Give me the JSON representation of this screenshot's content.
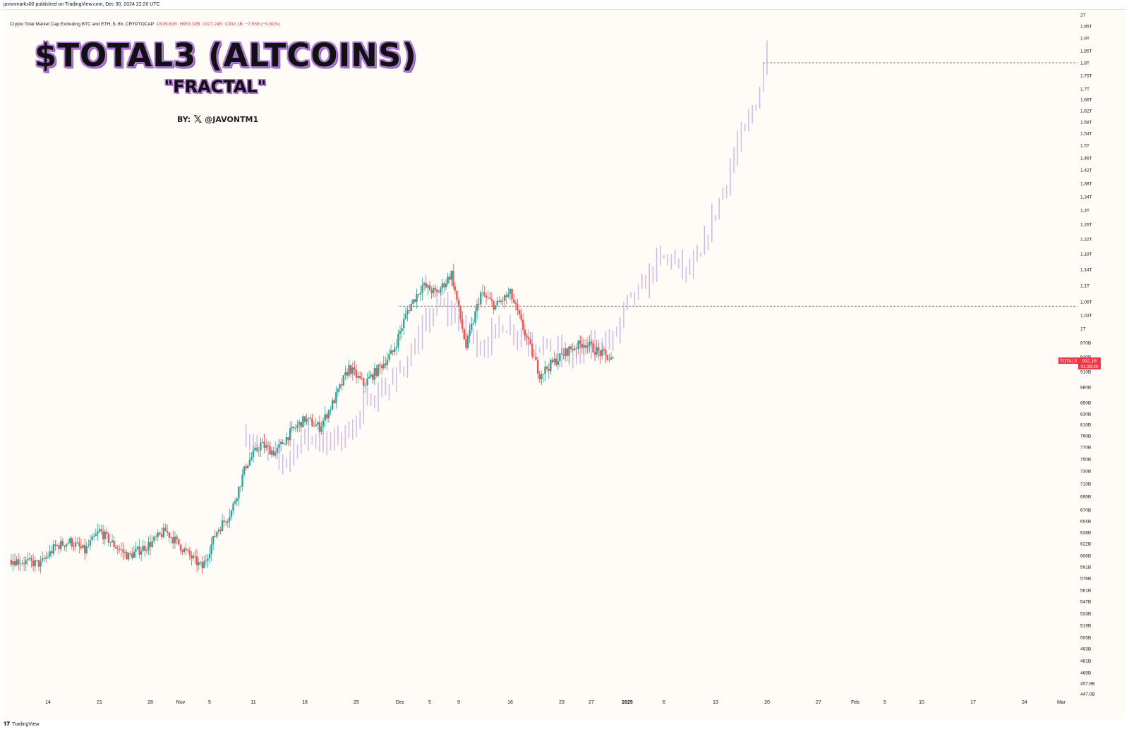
{
  "header": {
    "publisher": "javonmarks00 published on TradingView.com, Dec 30, 2024 22:20 UTC"
  },
  "legend": {
    "symbol_desc": "Crypto Total Market Cap Excluding BTC and ETH, $, 6h, CRYPTOCAP",
    "open": "O939.61B",
    "high": "H953.32B",
    "low": "L927.24B",
    "close": "C932.1B",
    "change": "−7.65B (−0.81%)"
  },
  "overlay": {
    "title": "$TOTAL3 (ALTCOINS)",
    "subtitle": "\"FRACTAL\"",
    "by_label": "BY:",
    "x_icon": "x-logo-icon",
    "handle": "@JAVONTM1"
  },
  "footer": {
    "brand": "TradingView",
    "logo_icon": "tradingview-logo-icon"
  },
  "price_tag": {
    "symbol": "TOTAL3",
    "value": "932.1B",
    "countdown": "01:39:28",
    "color": "#f23645"
  },
  "colors": {
    "up": "#26a69a",
    "down": "#ef5350",
    "fractal": "#cdb6e6",
    "background": "#fffcf7",
    "title_outline": "#b07ad6"
  },
  "chart_data": {
    "type": "candlestick",
    "scale": "log",
    "y_ticks": [
      "2T",
      "1.95T",
      "1.9T",
      "1.85T",
      "1.8T",
      "1.75T",
      "1.7T",
      "1.66T",
      "1.62T",
      "1.58T",
      "1.54T",
      "1.5T",
      "1.46T",
      "1.42T",
      "1.38T",
      "1.34T",
      "1.3T",
      "1.26T",
      "1.22T",
      "1.18T",
      "1.14T",
      "1.1T",
      "1.06T",
      "1.03T",
      "1T",
      "970B",
      "940B",
      "910B",
      "880B",
      "850B",
      "830B",
      "810B",
      "790B",
      "770B",
      "750B",
      "730B",
      "710B",
      "690B",
      "670B",
      "654B",
      "638B",
      "622B",
      "606B",
      "591B",
      "576B",
      "561B",
      "547B",
      "533B",
      "519B",
      "505B",
      "493B",
      "481B",
      "469B",
      "457.8B",
      "447.0B"
    ],
    "x_ticks": [
      "14",
      "21",
      "28",
      "Nov",
      "5",
      "11",
      "18",
      "25",
      "Dec",
      "5",
      "9",
      "16",
      "23",
      "27",
      "2025",
      "6",
      "13",
      "20",
      "27",
      "Feb",
      "5",
      "10",
      "17",
      "24",
      "Mar"
    ],
    "hlines": [
      1050000000000.0,
      1800000000000.0
    ],
    "series": [
      {
        "name": "TOTAL3",
        "kind": "actual_6h_candles",
        "anchors": [
          [
            "2024-10-09",
            600000000000.0
          ],
          [
            "2024-10-13",
            595000000000.0
          ],
          [
            "2024-10-15",
            618000000000.0
          ],
          [
            "2024-10-17",
            625000000000.0
          ],
          [
            "2024-10-19",
            612000000000.0
          ],
          [
            "2024-10-21",
            640000000000.0
          ],
          [
            "2024-10-23",
            620000000000.0
          ],
          [
            "2024-10-25",
            605000000000.0
          ],
          [
            "2024-10-28",
            622000000000.0
          ],
          [
            "2024-10-30",
            640000000000.0
          ],
          [
            "2024-11-02",
            608000000000.0
          ],
          [
            "2024-11-04",
            590000000000.0
          ],
          [
            "2024-11-06",
            640000000000.0
          ],
          [
            "2024-11-08",
            668000000000.0
          ],
          [
            "2024-11-10",
            740000000000.0
          ],
          [
            "2024-11-12",
            775000000000.0
          ],
          [
            "2024-11-14",
            760000000000.0
          ],
          [
            "2024-11-16",
            795000000000.0
          ],
          [
            "2024-11-18",
            820000000000.0
          ],
          [
            "2024-11-20",
            805000000000.0
          ],
          [
            "2024-11-22",
            855000000000.0
          ],
          [
            "2024-11-24",
            918000000000.0
          ],
          [
            "2024-11-26",
            885000000000.0
          ],
          [
            "2024-11-28",
            915000000000.0
          ],
          [
            "2024-11-30",
            950000000000.0
          ],
          [
            "2024-12-02",
            1040000000000.0
          ],
          [
            "2024-12-04",
            1100000000000.0
          ],
          [
            "2024-12-06",
            1080000000000.0
          ],
          [
            "2024-12-08",
            1130000000000.0
          ],
          [
            "2024-12-10",
            960000000000.0
          ],
          [
            "2024-12-12",
            1080000000000.0
          ],
          [
            "2024-12-14",
            1050000000000.0
          ],
          [
            "2024-12-16",
            1080000000000.0
          ],
          [
            "2024-12-18",
            990000000000.0
          ],
          [
            "2024-12-20",
            905000000000.0
          ],
          [
            "2024-12-22",
            930000000000.0
          ],
          [
            "2024-12-24",
            955000000000.0
          ],
          [
            "2024-12-26",
            970000000000.0
          ],
          [
            "2024-12-28",
            950000000000.0
          ],
          [
            "2024-12-30",
            932100000000.0
          ]
        ]
      },
      {
        "name": "fractal",
        "kind": "projected_overlay_bars",
        "anchors": [
          [
            "2024-11-10",
            790000000000.0
          ],
          [
            "2024-11-12",
            770000000000.0
          ],
          [
            "2024-11-15",
            745000000000.0
          ],
          [
            "2024-11-18",
            790000000000.0
          ],
          [
            "2024-11-21",
            775000000000.0
          ],
          [
            "2024-11-24",
            800000000000.0
          ],
          [
            "2024-11-27",
            860000000000.0
          ],
          [
            "2024-11-30",
            890000000000.0
          ],
          [
            "2024-12-03",
            960000000000.0
          ],
          [
            "2024-12-06",
            1060000000000.0
          ],
          [
            "2024-12-09",
            1020000000000.0
          ],
          [
            "2024-12-12",
            960000000000.0
          ],
          [
            "2024-12-15",
            1010000000000.0
          ],
          [
            "2024-12-18",
            980000000000.0
          ],
          [
            "2024-12-21",
            960000000000.0
          ],
          [
            "2024-12-24",
            940000000000.0
          ],
          [
            "2024-12-27",
            960000000000.0
          ],
          [
            "2024-12-30",
            975000000000.0
          ],
          [
            "2025-01-01",
            1060000000000.0
          ],
          [
            "2025-01-03",
            1090000000000.0
          ],
          [
            "2025-01-05",
            1160000000000.0
          ],
          [
            "2025-01-07",
            1170000000000.0
          ],
          [
            "2025-01-09",
            1130000000000.0
          ],
          [
            "2025-01-11",
            1170000000000.0
          ],
          [
            "2025-01-12",
            1240000000000.0
          ],
          [
            "2025-01-14",
            1360000000000.0
          ],
          [
            "2025-01-16",
            1500000000000.0
          ],
          [
            "2025-01-17",
            1550000000000.0
          ],
          [
            "2025-01-18",
            1620000000000.0
          ],
          [
            "2025-01-19",
            1700000000000.0
          ],
          [
            "2025-01-20",
            1880000000000.0
          ]
        ]
      }
    ]
  }
}
